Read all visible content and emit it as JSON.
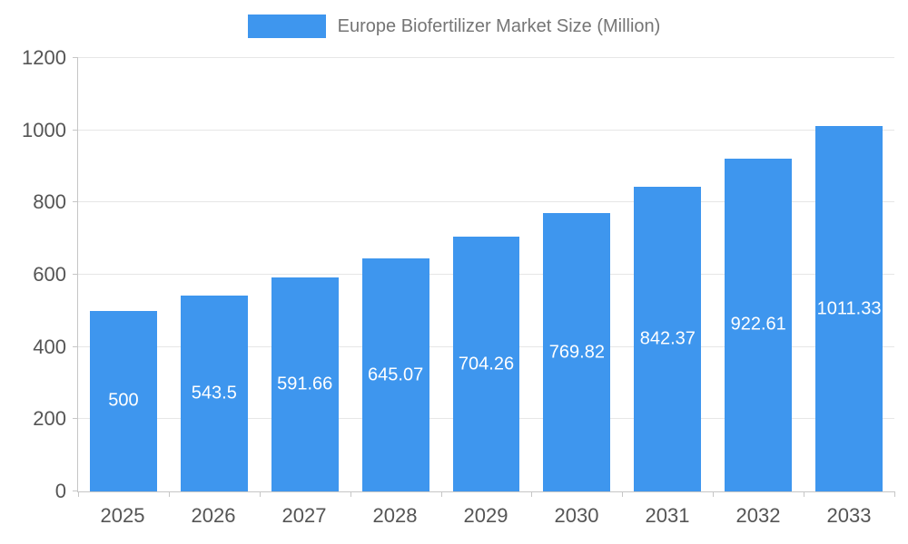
{
  "legend": {
    "title": "Europe Biofertilizer Market Size (Million)",
    "swatch_color": "#3e96ee"
  },
  "chart_data": {
    "type": "bar",
    "title": "Europe Biofertilizer Market Size (Million)",
    "categories": [
      "2025",
      "2026",
      "2027",
      "2028",
      "2029",
      "2030",
      "2031",
      "2032",
      "2033"
    ],
    "values": [
      500,
      543.5,
      591.66,
      645.07,
      704.26,
      769.82,
      842.37,
      922.61,
      1011.33
    ],
    "value_labels": [
      "500",
      "543.5",
      "591.66",
      "645.07",
      "704.26",
      "769.82",
      "842.37",
      "922.61",
      "1011.33"
    ],
    "xlabel": "",
    "ylabel": "",
    "ylim": [
      0,
      1200
    ],
    "yticks": [
      0,
      200,
      400,
      600,
      800,
      1000,
      1200
    ],
    "grid": true,
    "legend_position": "top",
    "bar_color": "#3e96ee",
    "value_label_color": "#ffffff"
  },
  "colors": {
    "axis_text": "#555555",
    "grid_line": "#e6e6e6",
    "axis_line": "#c6c6c6",
    "legend_text": "#757575",
    "background": "#ffffff"
  }
}
